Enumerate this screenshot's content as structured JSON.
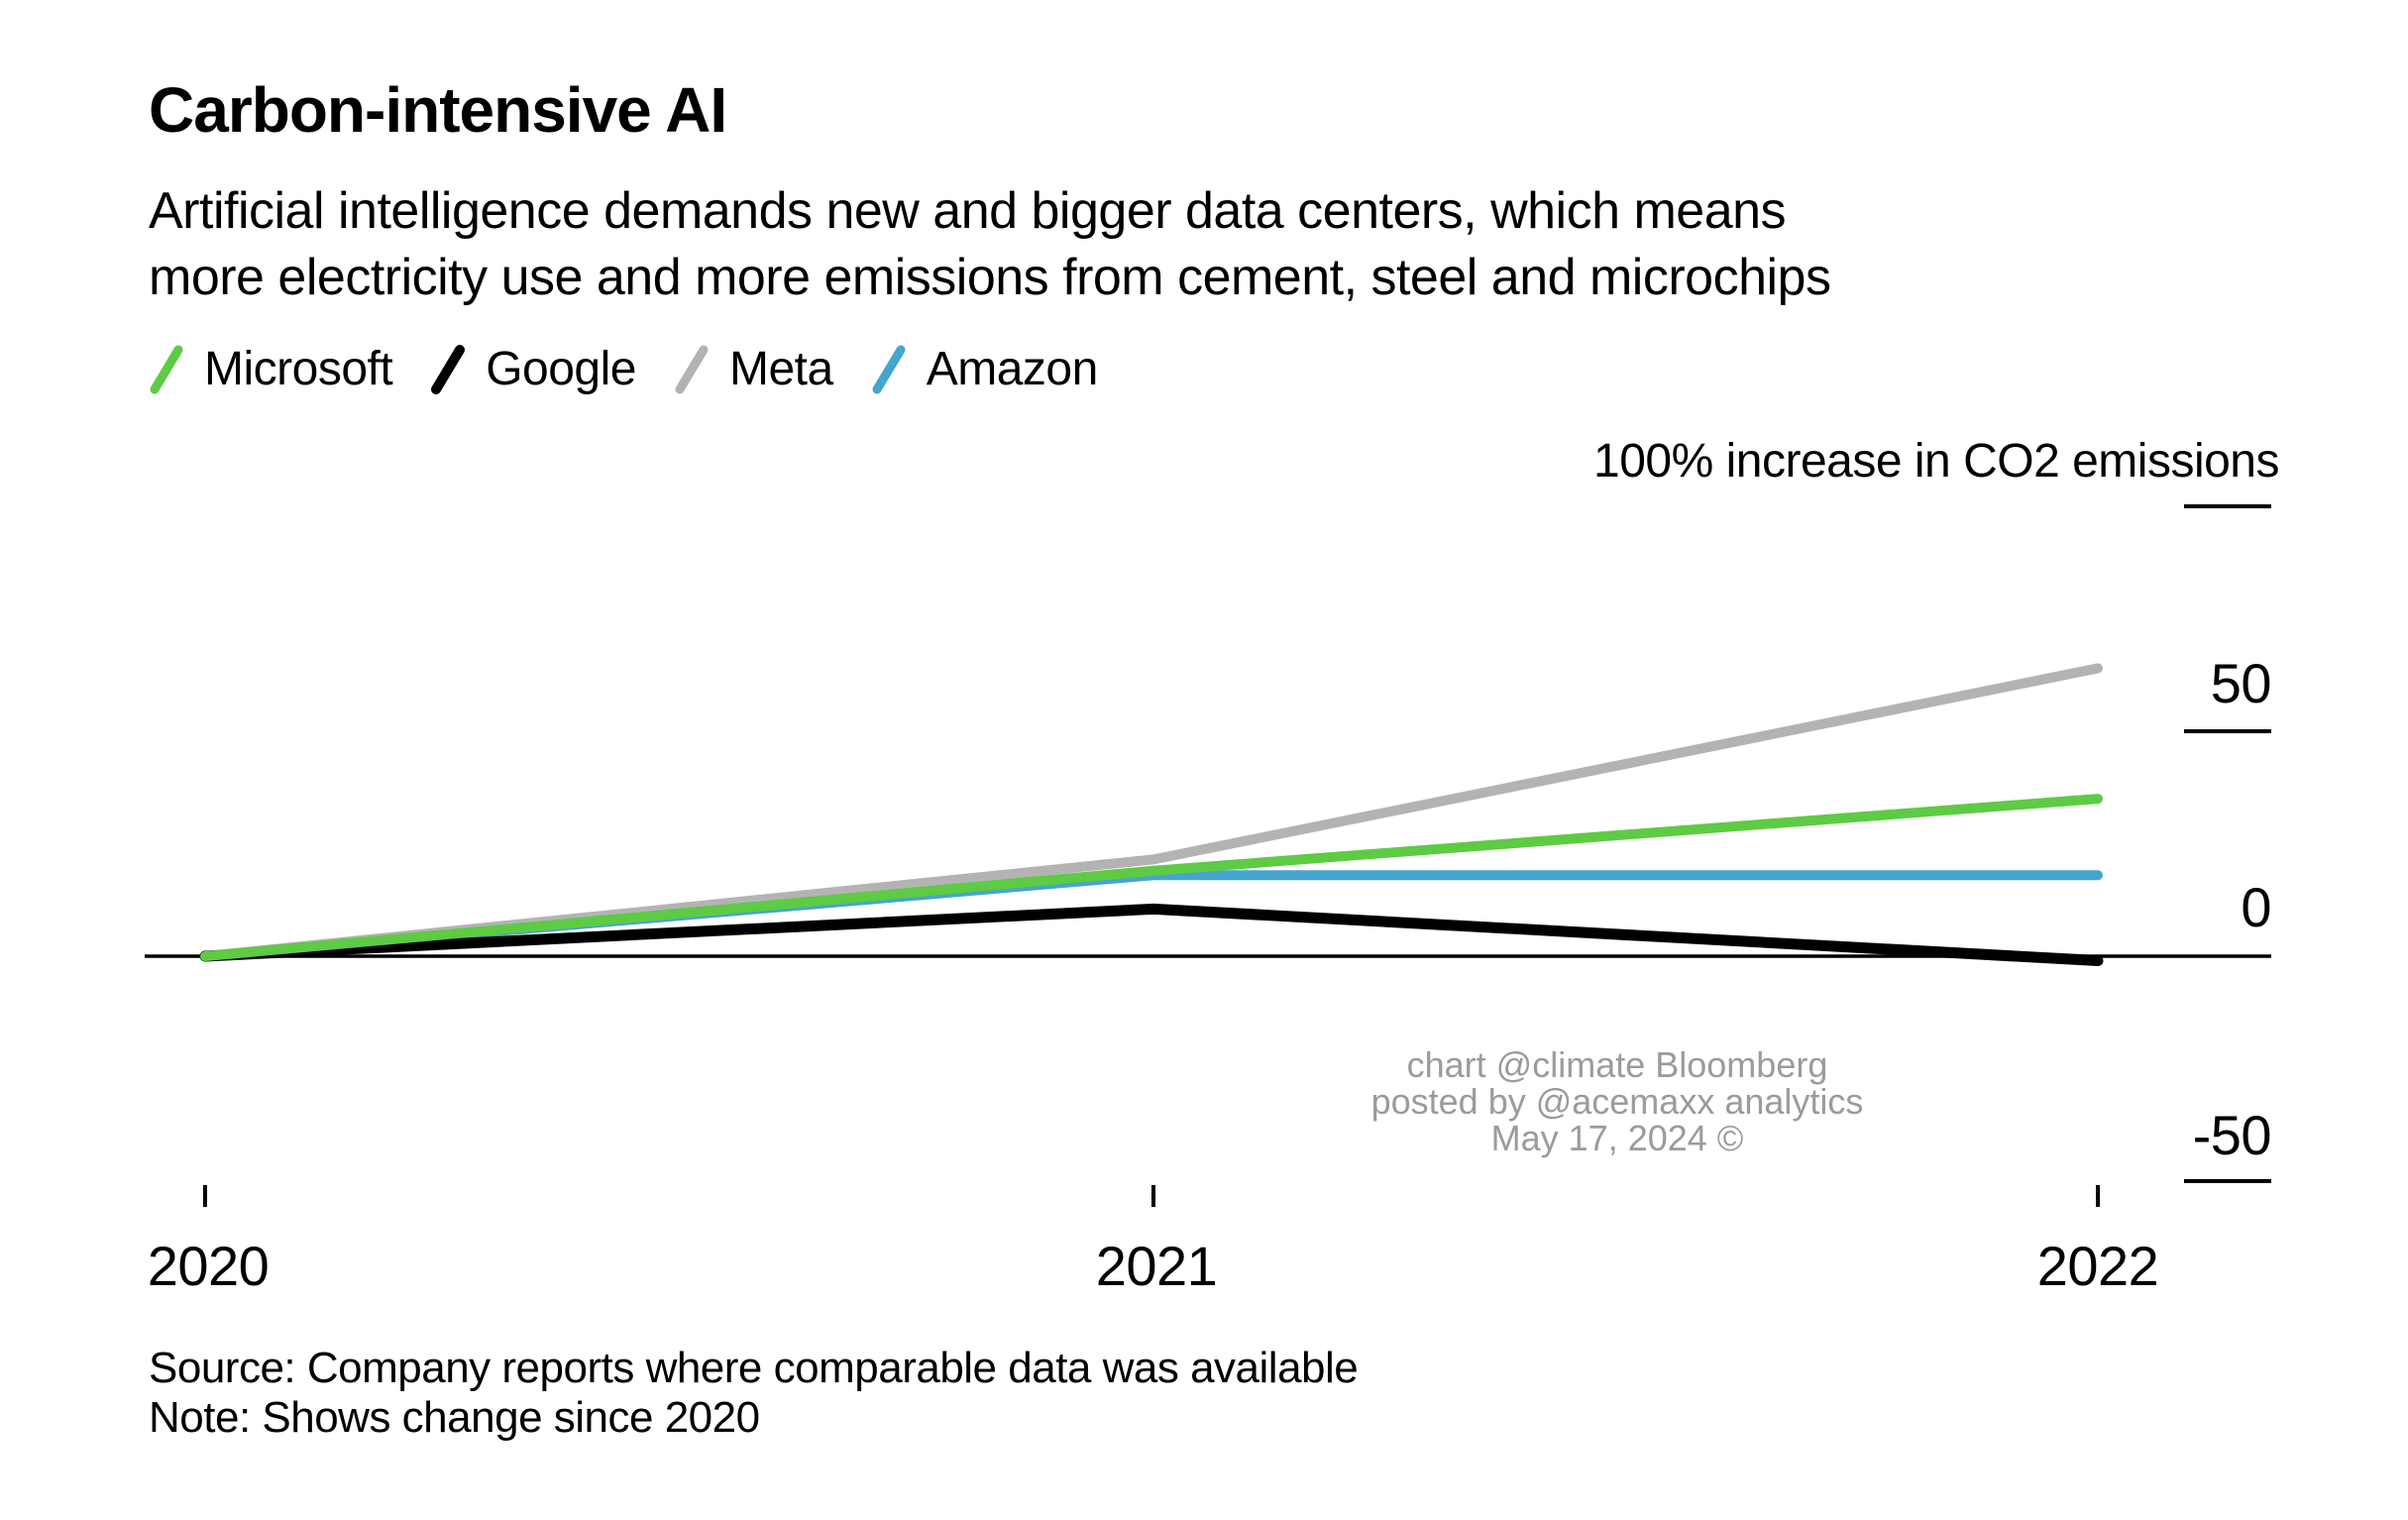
{
  "header": {
    "title": "Carbon-intensive AI",
    "subtitle_lines": [
      "Artificial intelligence demands new and bigger data centers, which means",
      "more electricity use and more emissions from cement, steel and microchips"
    ]
  },
  "legend": [
    {
      "label": "Microsoft",
      "color": "#5DCB44"
    },
    {
      "label": "Google",
      "color": "#000000"
    },
    {
      "label": "Meta",
      "color": "#B3B3B3"
    },
    {
      "label": "Amazon",
      "color": "#46A5CD"
    }
  ],
  "chart_data": {
    "type": "line",
    "title": "Carbon-intensive AI",
    "x": [
      2020,
      2021,
      2022
    ],
    "x_tick_labels": [
      "2020",
      "2021",
      "2022"
    ],
    "y_axis": {
      "annotation": "100% increase in CO2 emissions",
      "side": "right",
      "range": [
        -60,
        110
      ],
      "ticks": [
        {
          "value": 100,
          "label": ""
        },
        {
          "value": 50,
          "label": "50"
        },
        {
          "value": 0,
          "label": "0"
        },
        {
          "value": -50,
          "label": "-50"
        }
      ]
    },
    "grid": false,
    "legend_position": "top-left",
    "series": [
      {
        "name": "Meta",
        "color": "#B3B3B3",
        "values": [
          0,
          21.5,
          64
        ]
      },
      {
        "name": "Amazon",
        "color": "#46A5CD",
        "values": [
          0,
          18,
          18
        ]
      },
      {
        "name": "Google",
        "color": "#000000",
        "values": [
          0,
          10.5,
          -1
        ]
      },
      {
        "name": "Microsoft",
        "color": "#5DCB44",
        "values": [
          0,
          19,
          35
        ]
      }
    ]
  },
  "watermark": {
    "lines": [
      "chart @climate Bloomberg",
      "posted by @acemaxx analytics",
      "May 17, 2024 ©"
    ]
  },
  "footer": {
    "source": "Source: Company reports where comparable data was available",
    "note": "Note: Shows change since 2020"
  }
}
